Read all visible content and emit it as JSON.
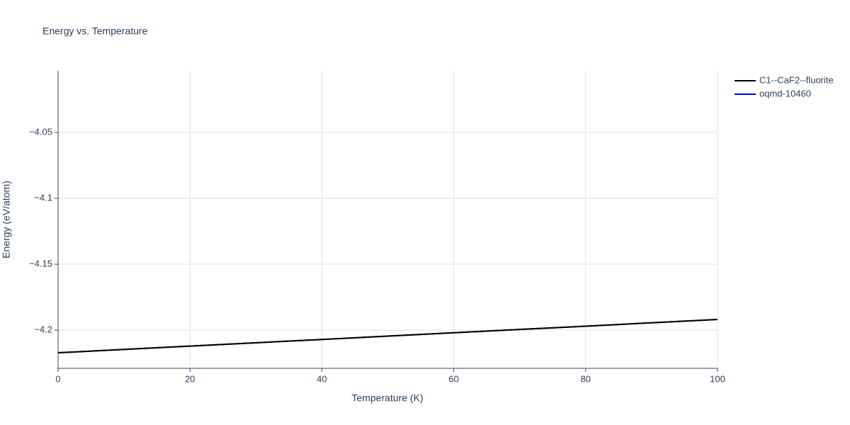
{
  "chart_data": {
    "type": "line",
    "title": "Energy vs. Temperature",
    "x_label": "Temperature (K)",
    "y_label": "Energy (eV/atom)",
    "x": [
      0,
      20,
      40,
      60,
      80,
      100
    ],
    "series": [
      {
        "name": "C1--CaF2--fluorite",
        "color": "#000000",
        "values": [
          -4.2172,
          -4.2121,
          -4.2071,
          -4.202,
          -4.197,
          -4.1919
        ]
      },
      {
        "name": "oqmd-10460",
        "color": "#0000ff",
        "values": [
          -4.2172,
          -4.2121,
          -4.2071,
          -4.202,
          -4.197,
          -4.1919
        ]
      }
    ],
    "xlim": [
      0,
      100
    ],
    "xticks": [
      0,
      20,
      40,
      60,
      80,
      100
    ],
    "ylim": [
      -4.229,
      -4.0032
    ],
    "yticks": [
      {
        "value": -4.05,
        "label": "−4.05"
      },
      {
        "value": -4.1,
        "label": "−4.1"
      },
      {
        "value": -4.15,
        "label": "−4.15"
      },
      {
        "value": -4.2,
        "label": "−4.2"
      }
    ],
    "grid": true,
    "legend": "top-right"
  }
}
